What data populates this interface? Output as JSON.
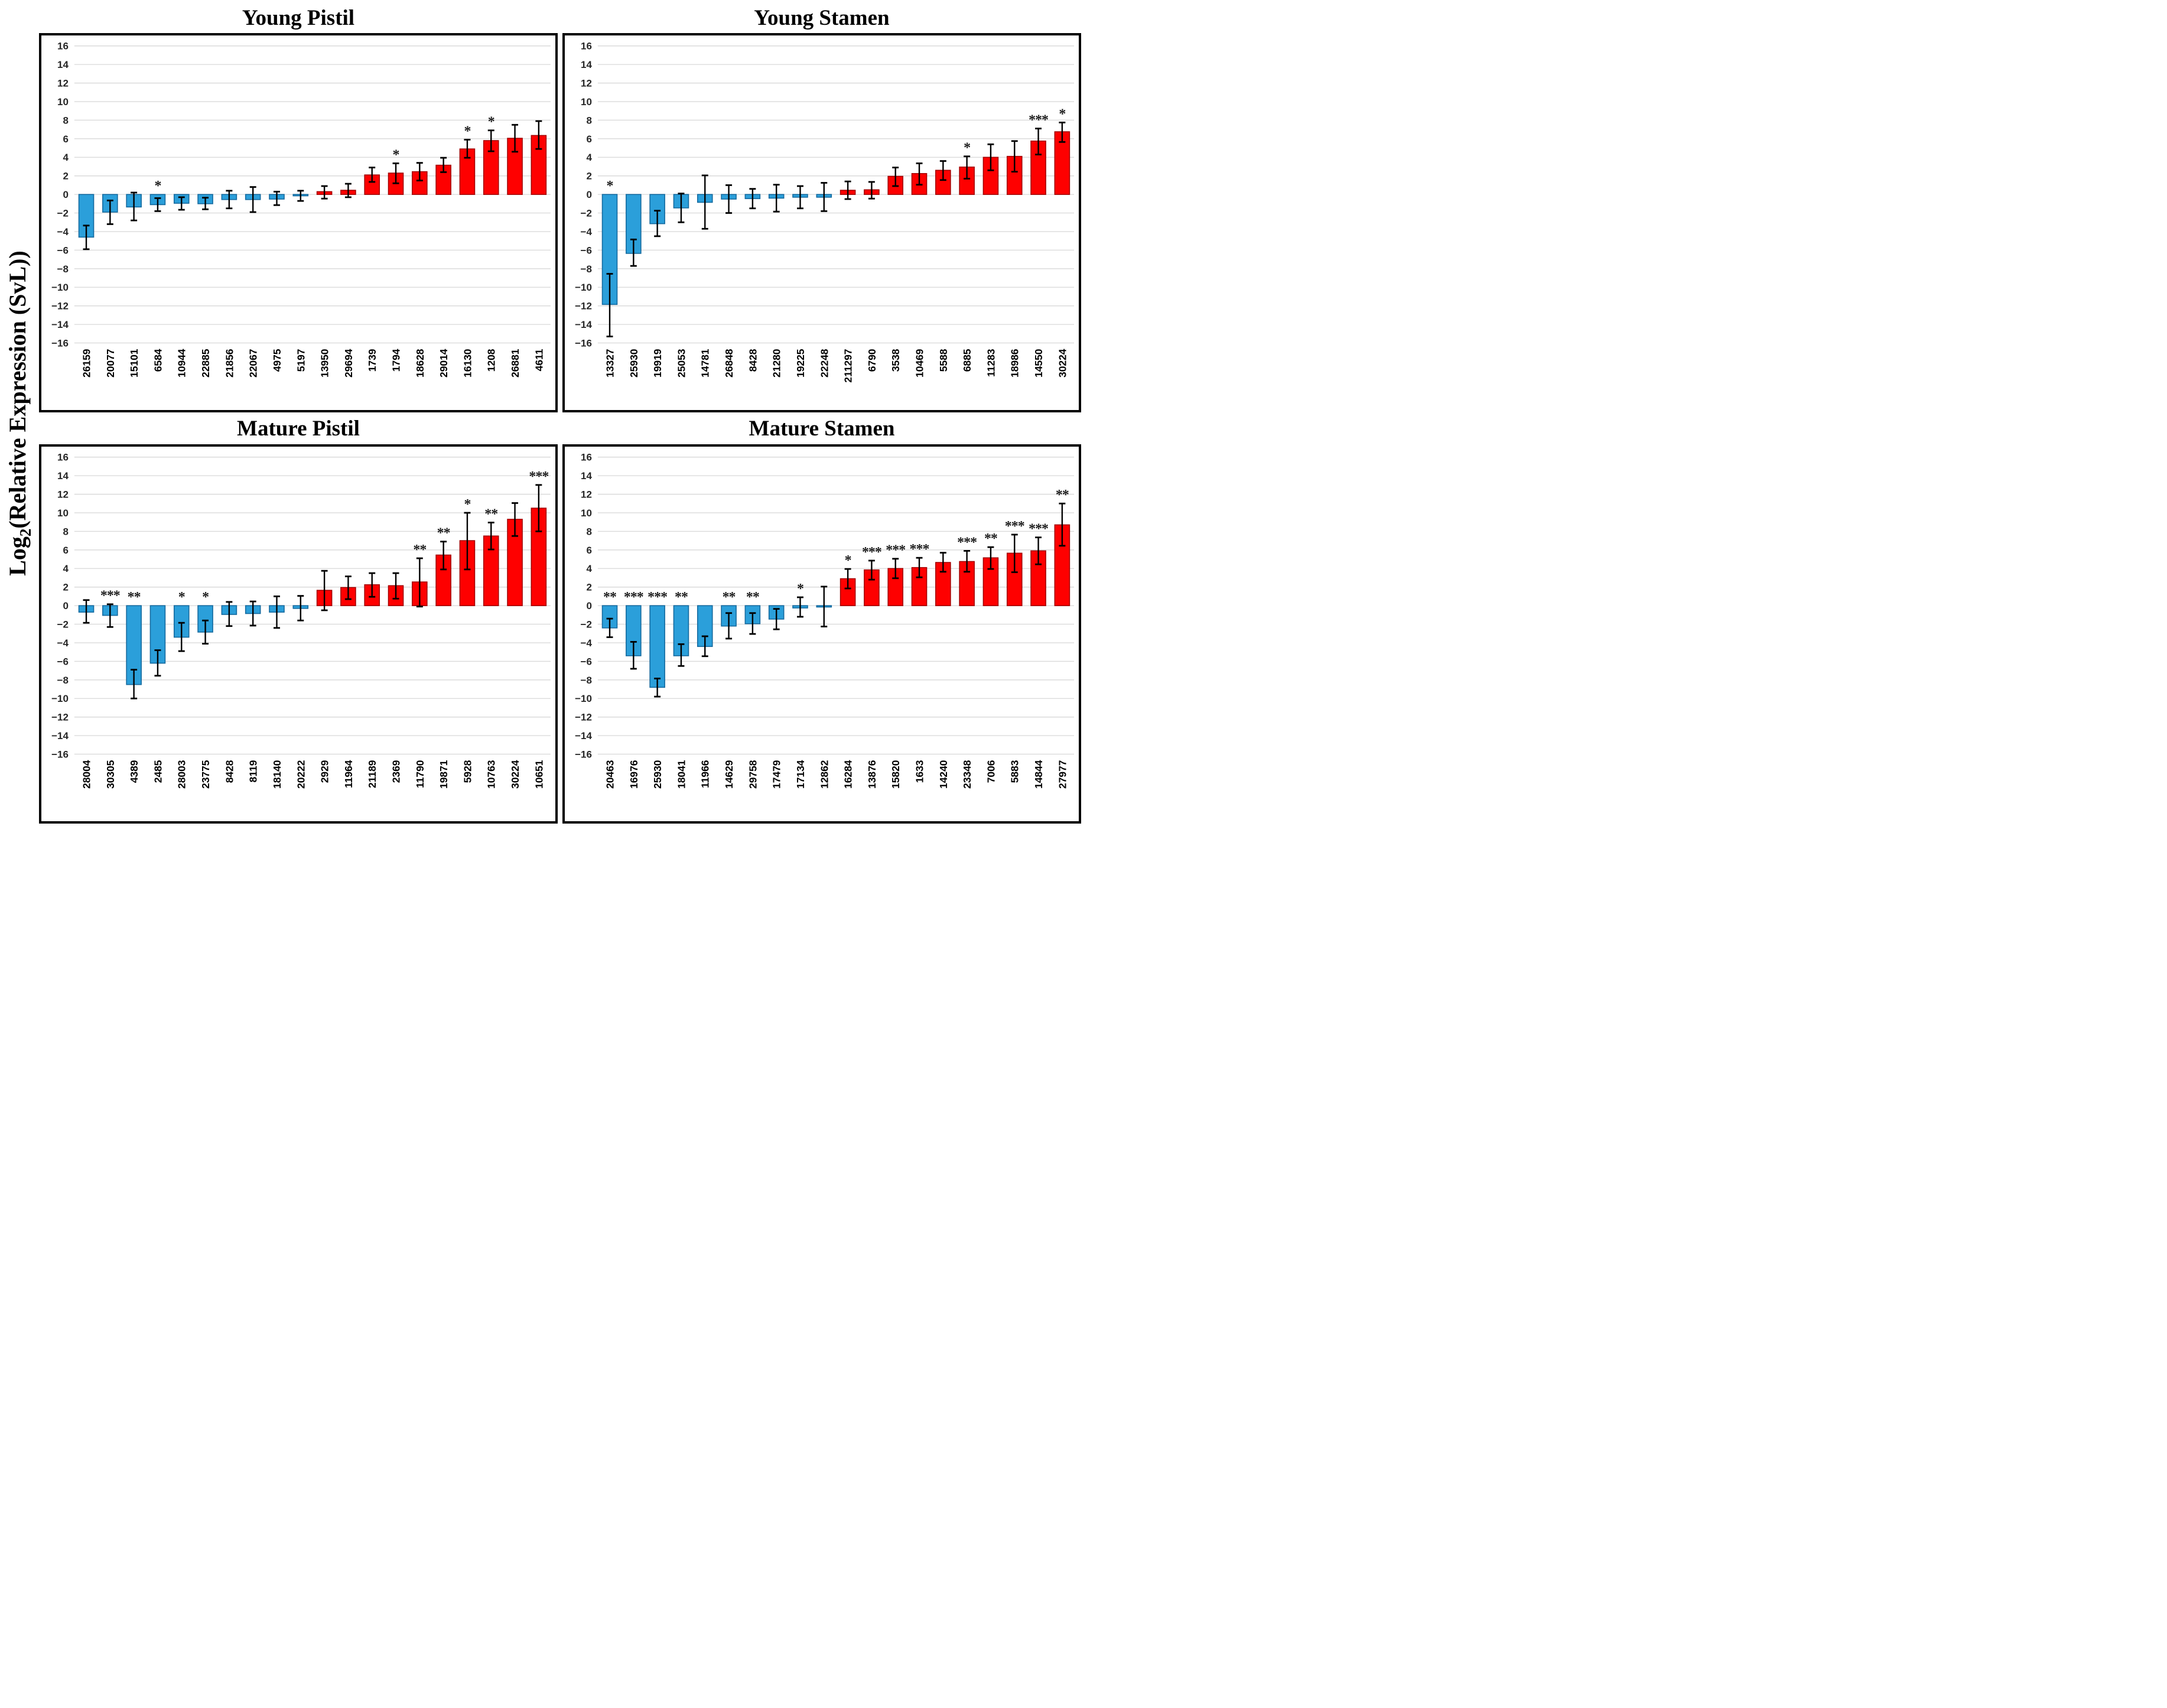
{
  "figure": {
    "y_axis_label": "Log2(Relative Expression (SvL))",
    "y_axis_label_parts": {
      "prefix": "Log",
      "sub": "2",
      "suffix": "(Relative Expression (SvL))"
    }
  },
  "colors": {
    "positive_fill": "#FE0000",
    "positive_stroke": "#A50000",
    "negative_fill": "#2B9FDA",
    "negative_stroke": "#156A9F",
    "error_bar": "#000000",
    "grid": "#D8D8D8",
    "tick_text": "#262626",
    "star": "#1a1a1a",
    "panel_border": "#000000"
  },
  "axis": {
    "y_min": -16,
    "y_max": 16,
    "y_step": 2
  },
  "chart_data": [
    {
      "type": "bar",
      "title": "Young Pistil",
      "ylabel": "Log2(Relative Expression (SvL))",
      "ylim": [
        -16,
        16
      ],
      "grid": true,
      "categories": [
        "26159",
        "20077",
        "15101",
        "6584",
        "10944",
        "22885",
        "21856",
        "22067",
        "4975",
        "5197",
        "13950",
        "29694",
        "1739",
        "1794",
        "18628",
        "29014",
        "16130",
        "1208",
        "26881",
        "4611"
      ],
      "values": [
        -4.6,
        -1.9,
        -1.35,
        -1.1,
        -0.95,
        -1.0,
        -0.55,
        -0.55,
        -0.5,
        -0.15,
        0.3,
        0.45,
        2.1,
        2.3,
        2.45,
        3.15,
        4.9,
        5.8,
        6.05,
        6.35
      ],
      "err_hi": [
        -3.35,
        -0.65,
        0.2,
        -0.4,
        -0.3,
        -0.35,
        0.4,
        0.8,
        0.3,
        0.4,
        0.9,
        1.15,
        2.9,
        3.35,
        3.4,
        3.95,
        5.9,
        6.9,
        7.5,
        7.9
      ],
      "err_lo": [
        -5.9,
        -3.2,
        -2.8,
        -1.8,
        -1.65,
        -1.6,
        -1.5,
        -1.9,
        -1.15,
        -0.7,
        -0.45,
        -0.3,
        1.35,
        1.2,
        1.5,
        2.4,
        3.95,
        4.65,
        4.6,
        4.9
      ],
      "sig": [
        "",
        "",
        "",
        "*",
        "",
        "",
        "",
        "",
        "",
        "",
        "",
        "",
        "",
        "*",
        "",
        "",
        "*",
        "*",
        "",
        ""
      ]
    },
    {
      "type": "bar",
      "title": "Young Stamen",
      "ylabel": "Log2(Relative Expression (SvL))",
      "ylim": [
        -16,
        16
      ],
      "grid": true,
      "categories": [
        "13327",
        "25930",
        "19919",
        "25053",
        "14781",
        "26848",
        "8428",
        "21280",
        "19225",
        "22248",
        "211297",
        "6790",
        "3538",
        "10469",
        "5588",
        "6885",
        "11283",
        "18986",
        "14550",
        "30224"
      ],
      "values": [
        -11.85,
        -6.35,
        -3.15,
        -1.45,
        -0.85,
        -0.5,
        -0.45,
        -0.4,
        -0.3,
        -0.3,
        0.45,
        0.5,
        1.95,
        2.25,
        2.6,
        2.95,
        4.0,
        4.1,
        5.75,
        6.75
      ],
      "err_hi": [
        -8.55,
        -4.85,
        -1.75,
        0.1,
        2.05,
        1.0,
        0.6,
        1.05,
        0.9,
        1.25,
        1.4,
        1.35,
        2.9,
        3.35,
        3.6,
        4.1,
        5.4,
        5.75,
        7.1,
        7.75
      ],
      "err_lo": [
        -15.3,
        -7.7,
        -4.5,
        -3.0,
        -3.7,
        -2.0,
        -1.5,
        -1.85,
        -1.5,
        -1.8,
        -0.5,
        -0.45,
        0.9,
        1.05,
        1.55,
        1.7,
        2.6,
        2.45,
        4.3,
        5.65
      ],
      "sig": [
        "*",
        "",
        "",
        "",
        "",
        "",
        "",
        "",
        "",
        "",
        "",
        "",
        "",
        "",
        "",
        "*",
        "",
        "",
        "***",
        "*"
      ]
    },
    {
      "type": "bar",
      "title": "Mature Pistil",
      "ylabel": "Log2(Relative Expression (SvL))",
      "ylim": [
        -16,
        16
      ],
      "grid": true,
      "categories": [
        "28004",
        "30305",
        "4389",
        "2485",
        "28003",
        "23775",
        "8428",
        "8119",
        "18140",
        "20222",
        "2929",
        "11964",
        "21189",
        "2369",
        "11790",
        "19871",
        "5928",
        "10763",
        "30224",
        "10651"
      ],
      "values": [
        -0.7,
        -1.05,
        -8.5,
        -6.2,
        -3.4,
        -2.85,
        -0.95,
        -0.85,
        -0.7,
        -0.3,
        1.65,
        1.95,
        2.25,
        2.15,
        2.55,
        5.45,
        7.0,
        7.5,
        9.3,
        10.5
      ],
      "err_hi": [
        0.6,
        0.15,
        -6.9,
        -4.8,
        -1.85,
        -1.6,
        0.4,
        0.45,
        1.0,
        1.05,
        3.75,
        3.15,
        3.5,
        3.5,
        5.1,
        6.9,
        10.0,
        8.95,
        11.05,
        13.0
      ],
      "err_lo": [
        -1.85,
        -2.3,
        -10.0,
        -7.55,
        -4.9,
        -4.1,
        -2.2,
        -2.15,
        -2.4,
        -1.6,
        -0.5,
        0.7,
        0.95,
        0.75,
        -0.1,
        3.9,
        3.9,
        6.05,
        7.5,
        8.0
      ],
      "sig": [
        "",
        "***",
        "**",
        "",
        "*",
        "*",
        "",
        "",
        "",
        "",
        "",
        "",
        "",
        "",
        "**",
        "**",
        "*",
        "**",
        "",
        "***"
      ]
    },
    {
      "type": "bar",
      "title": "Mature Stamen",
      "ylabel": "Log2(Relative Expression (SvL))",
      "ylim": [
        -16,
        16
      ],
      "grid": true,
      "categories": [
        "20463",
        "16976",
        "25930",
        "18041",
        "11966",
        "14629",
        "29758",
        "17479",
        "17134",
        "12862",
        "16284",
        "13876",
        "15820",
        "1633",
        "14240",
        "23348",
        "7006",
        "5883",
        "14844",
        "27977"
      ],
      "values": [
        -2.4,
        -5.4,
        -8.8,
        -5.4,
        -4.4,
        -2.2,
        -1.95,
        -1.45,
        -0.25,
        -0.15,
        2.9,
        3.85,
        4.0,
        4.1,
        4.65,
        4.75,
        5.15,
        5.65,
        5.9,
        8.7
      ],
      "err_hi": [
        -1.4,
        -3.9,
        -7.85,
        -4.15,
        -3.3,
        -0.8,
        -0.8,
        -0.35,
        0.9,
        2.05,
        3.95,
        4.85,
        5.05,
        5.15,
        5.7,
        5.9,
        6.3,
        7.65,
        7.35,
        11.0
      ],
      "err_lo": [
        -3.4,
        -6.8,
        -9.8,
        -6.5,
        -5.45,
        -3.55,
        -3.05,
        -2.55,
        -1.2,
        -2.25,
        1.85,
        2.8,
        2.95,
        3.05,
        3.65,
        3.65,
        3.95,
        3.6,
        4.45,
        6.45
      ],
      "sig": [
        "**",
        "***",
        "***",
        "**",
        "",
        "**",
        "**",
        "",
        "*",
        "",
        "*",
        "***",
        "***",
        "***",
        "",
        "***",
        "**",
        "***",
        "***",
        "**"
      ]
    }
  ]
}
